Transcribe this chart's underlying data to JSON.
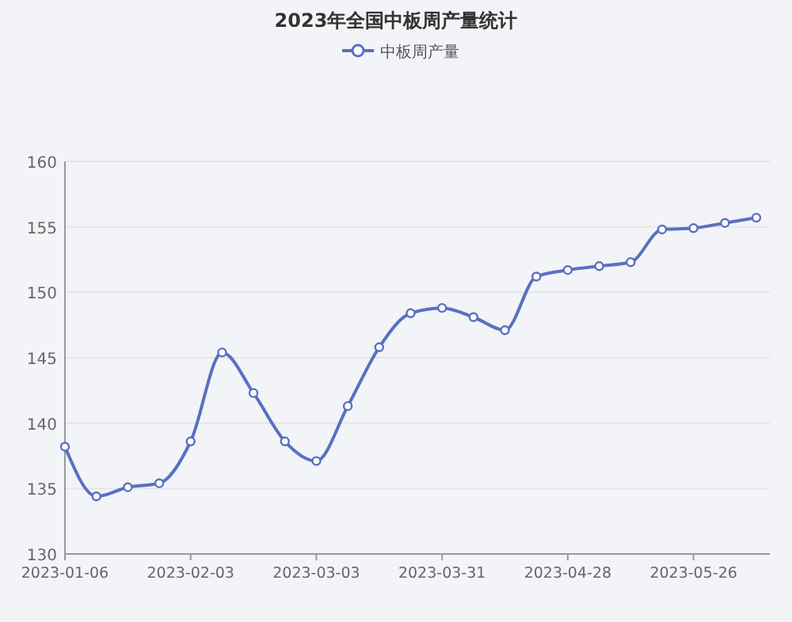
{
  "chart_data": {
    "type": "line",
    "title": "2023年全国中板周产量统计",
    "x": [
      "2023-01-06",
      "2023-01-13",
      "2023-01-20",
      "2023-01-27",
      "2023-02-03",
      "2023-02-10",
      "2023-02-17",
      "2023-02-24",
      "2023-03-03",
      "2023-03-10",
      "2023-03-17",
      "2023-03-24",
      "2023-03-31",
      "2023-04-07",
      "2023-04-14",
      "2023-04-21",
      "2023-04-28",
      "2023-05-05",
      "2023-05-12",
      "2023-05-19",
      "2023-05-26",
      "2023-06-02",
      "2023-06-09"
    ],
    "series": [
      {
        "name": "中板周产量",
        "color": "#5b6fc2",
        "values": [
          138.2,
          134.4,
          135.1,
          135.4,
          138.6,
          145.4,
          142.3,
          138.6,
          137.1,
          141.3,
          145.8,
          148.4,
          148.8,
          148.1,
          147.1,
          151.2,
          151.7,
          152.0,
          152.3,
          154.8,
          154.9,
          155.3,
          155.7
        ]
      }
    ],
    "xlim": [
      "2023-01-06",
      "2023-06-12"
    ],
    "xticks": [
      {
        "value": "2023-01-06",
        "label": "2023-01-06"
      },
      {
        "value": "2023-02-03",
        "label": "2023-02-03"
      },
      {
        "value": "2023-03-03",
        "label": "2023-03-03"
      },
      {
        "value": "2023-03-31",
        "label": "2023-03-31"
      },
      {
        "value": "2023-04-28",
        "label": "2023-04-28"
      },
      {
        "value": "2023-05-26",
        "label": "2023-05-26"
      }
    ],
    "ylim": [
      130,
      160
    ],
    "yticks": [
      130,
      135,
      140,
      145,
      150,
      155,
      160
    ],
    "grid": "y",
    "legend": "top",
    "marker": "circle",
    "line_style": "solid"
  }
}
